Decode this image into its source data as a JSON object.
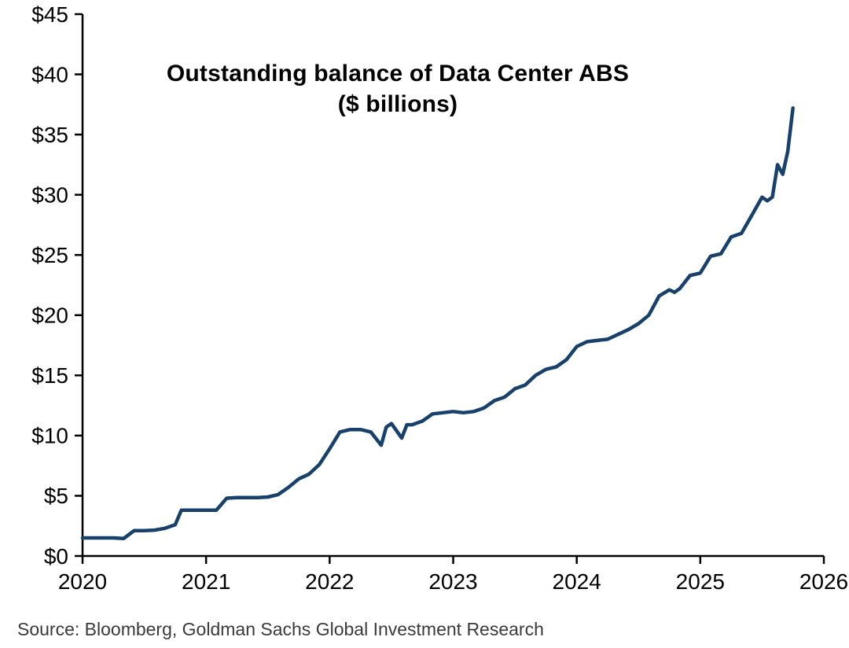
{
  "chart_data": {
    "type": "line",
    "title": "Outstanding balance of Data Center ABS",
    "subtitle": "($ billions)",
    "xlabel": "",
    "ylabel": "",
    "xlim": [
      2020,
      2026
    ],
    "ylim": [
      0,
      45
    ],
    "grid": false,
    "legend_position": "none",
    "axis_color": "#000000",
    "line_color": "#17416b",
    "x_ticks": [
      2020,
      2021,
      2022,
      2023,
      2024,
      2025,
      2026
    ],
    "x_tick_labels": [
      "2020",
      "2021",
      "2022",
      "2023",
      "2024",
      "2025",
      "2026"
    ],
    "y_ticks": [
      0,
      5,
      10,
      15,
      20,
      25,
      30,
      35,
      40,
      45
    ],
    "y_tick_labels": [
      "$0",
      "$5",
      "$10",
      "$15",
      "$20",
      "$25",
      "$30",
      "$35",
      "$40",
      "$45"
    ],
    "series": [
      {
        "name": "Outstanding balance of Data Center ABS ($ billions)",
        "x": [
          2020.0,
          2020.083,
          2020.167,
          2020.25,
          2020.333,
          2020.417,
          2020.5,
          2020.583,
          2020.667,
          2020.75,
          2020.8,
          2020.917,
          2021.0,
          2021.083,
          2021.167,
          2021.25,
          2021.333,
          2021.417,
          2021.5,
          2021.583,
          2021.667,
          2021.75,
          2021.833,
          2021.917,
          2022.0,
          2022.083,
          2022.167,
          2022.25,
          2022.333,
          2022.417,
          2022.458,
          2022.5,
          2022.583,
          2022.625,
          2022.667,
          2022.75,
          2022.833,
          2022.917,
          2023.0,
          2023.083,
          2023.167,
          2023.25,
          2023.333,
          2023.417,
          2023.5,
          2023.583,
          2023.667,
          2023.75,
          2023.833,
          2023.917,
          2024.0,
          2024.083,
          2024.167,
          2024.25,
          2024.333,
          2024.417,
          2024.5,
          2024.583,
          2024.667,
          2024.75,
          2024.792,
          2024.833,
          2024.917,
          2025.0,
          2025.083,
          2025.167,
          2025.25,
          2025.333,
          2025.417,
          2025.5,
          2025.542,
          2025.583,
          2025.625,
          2025.667,
          2025.708,
          2025.75
        ],
        "y": [
          1.5,
          1.5,
          1.5,
          1.5,
          1.45,
          2.1,
          2.1,
          2.15,
          2.3,
          2.6,
          3.8,
          3.8,
          3.8,
          3.8,
          4.8,
          4.85,
          4.85,
          4.85,
          4.9,
          5.1,
          5.7,
          6.4,
          6.8,
          7.6,
          8.9,
          10.3,
          10.5,
          10.5,
          10.3,
          9.2,
          10.7,
          11.0,
          9.8,
          10.9,
          10.9,
          11.2,
          11.8,
          11.9,
          12.0,
          11.9,
          12.0,
          12.3,
          12.9,
          13.2,
          13.9,
          14.2,
          15.0,
          15.5,
          15.7,
          16.3,
          17.4,
          17.8,
          17.9,
          18.0,
          18.4,
          18.8,
          19.3,
          20.0,
          21.6,
          22.1,
          21.9,
          22.2,
          23.3,
          23.5,
          24.9,
          25.1,
          26.5,
          26.8,
          28.3,
          29.8,
          29.5,
          29.8,
          32.5,
          31.7,
          33.6,
          37.2
        ]
      }
    ]
  },
  "source": "Source: Bloomberg, Goldman Sachs Global Investment Research"
}
